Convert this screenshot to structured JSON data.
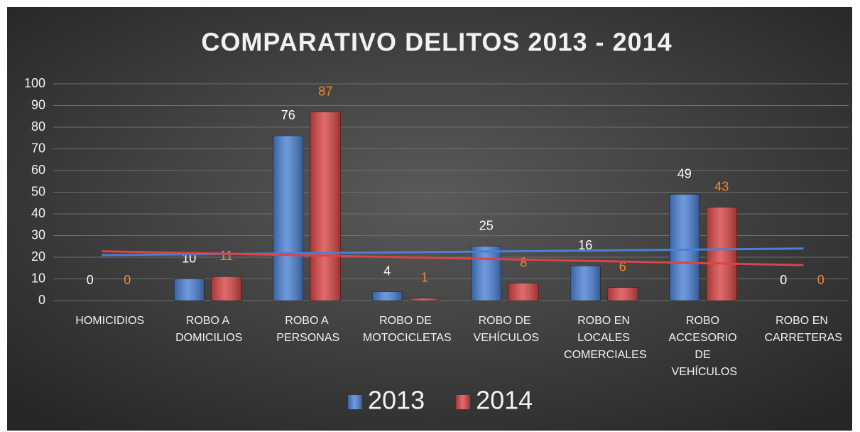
{
  "chart_data": {
    "type": "bar",
    "title": "COMPARATIVO DELITOS 2013 - 2014",
    "categories": [
      "HOMICIDIOS",
      "ROBO A DOMICILIOS",
      "ROBO A PERSONAS",
      "ROBO DE MOTOCICLETAS",
      "ROBO DE VEHÍCULOS",
      "ROBO EN LOCALES COMERCIALES",
      "ROBO ACCESORIO DE VEHÍCULOS",
      "ROBO EN CARRETERAS"
    ],
    "series": [
      {
        "name": "2013",
        "color": "#4a80d4",
        "label_color": "#ffffff",
        "values": [
          0,
          10,
          76,
          4,
          25,
          16,
          49,
          0
        ]
      },
      {
        "name": "2014",
        "color": "#d94444",
        "label_color": "#f08a2c",
        "values": [
          0,
          11,
          87,
          1,
          8,
          6,
          43,
          0
        ]
      }
    ],
    "ylim": [
      0,
      100
    ],
    "yticks": [
      0,
      10,
      20,
      30,
      40,
      50,
      60,
      70,
      80,
      90,
      100
    ],
    "grid": true,
    "trendline": true,
    "data_labels": true,
    "legend": "bottom"
  }
}
